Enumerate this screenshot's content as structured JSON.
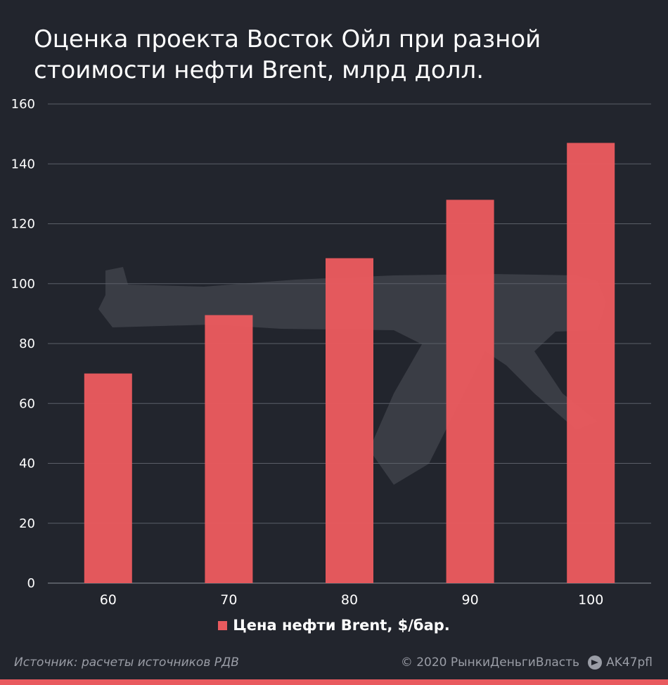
{
  "title": "Оценка проекта Восток Ойл при разной стоимости нефти Brent, млрд долл.",
  "colors": {
    "bar": "#e95a5e",
    "background": "#22252d",
    "grid": "#5b5f68",
    "text": "#ffffff",
    "muted": "#9a9da6",
    "watermark": "#3a3d45"
  },
  "chart_data": {
    "type": "bar",
    "title": "Оценка проекта Восток Ойл при разной стоимости нефти Brent, млрд долл.",
    "categories": [
      "60",
      "70",
      "80",
      "90",
      "100"
    ],
    "series": [
      {
        "name": "Цена нефти Brent, $/бар.",
        "values": [
          70,
          89.5,
          108.5,
          128,
          147
        ]
      }
    ],
    "ylim": [
      0,
      160
    ],
    "yticks": [
      0,
      20,
      40,
      60,
      80,
      100,
      120,
      140,
      160
    ],
    "grid": true,
    "legend_position": "bottom-center",
    "xlabel": "",
    "ylabel": ""
  },
  "legend": {
    "label": "Цена нефти Brent, $/бар."
  },
  "footer": {
    "source": "Источник: расчеты источников РДВ",
    "copyright": "© 2020  РынкиДеньгиВласть",
    "channel": "AK47pfl",
    "channel_icon": "telegram-icon"
  },
  "watermark": {
    "icon": "rifle-silhouette-icon"
  }
}
